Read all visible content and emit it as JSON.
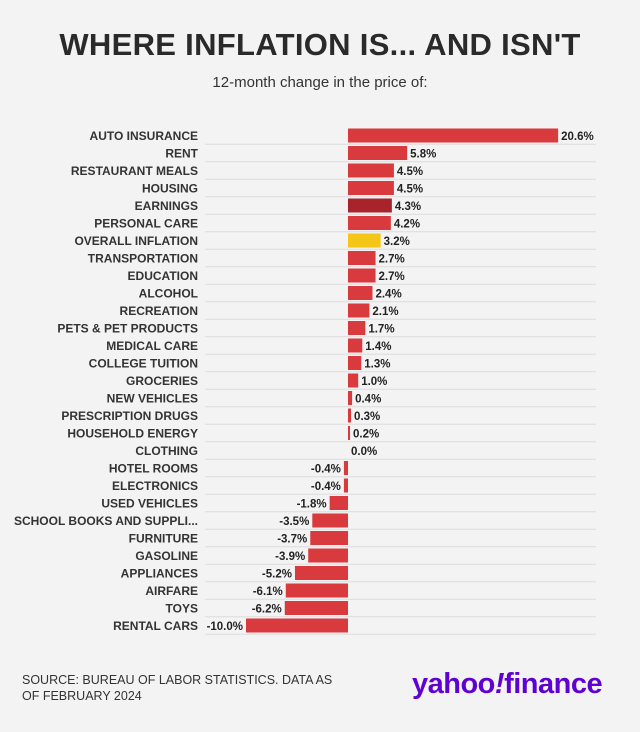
{
  "header": {
    "title": "WHERE INFLATION IS... AND ISN'T",
    "subtitle": "12-month change in the price of:"
  },
  "footer": {
    "source": "SOURCE: BUREAU OF LABOR STATISTICS. DATA AS OF FEBRUARY 2024",
    "logo": {
      "word": "yahoo",
      "bang": "!",
      "suffix": "finance"
    }
  },
  "colors": {
    "bar": "#d83a3e",
    "highlight_earnings": "#a8232b",
    "highlight_overall": "#f5c518",
    "logo": "#5f01d1"
  },
  "chart_data": {
    "type": "bar",
    "orientation": "horizontal",
    "title": "WHERE INFLATION IS... AND ISN'T",
    "subtitle": "12-month change in the price of:",
    "categories": [
      "AUTO INSURANCE",
      "RENT",
      "RESTAURANT MEALS",
      "HOUSING",
      "EARNINGS",
      "PERSONAL CARE",
      "OVERALL INFLATION",
      "TRANSPORTATION",
      "EDUCATION",
      "ALCOHOL",
      "RECREATION",
      "PETS & PET PRODUCTS",
      "MEDICAL CARE",
      "COLLEGE TUITION",
      "GROCERIES",
      "NEW VEHICLES",
      "PRESCRIPTION DRUGS",
      "HOUSEHOLD ENERGY",
      "CLOTHING",
      "HOTEL ROOMS",
      "ELECTRONICS",
      "USED VEHICLES",
      "SCHOOL BOOKS AND SUPPLI...",
      "FURNITURE",
      "GASOLINE",
      "APPLIANCES",
      "AIRFARE",
      "TOYS",
      "RENTAL CARS"
    ],
    "values": [
      20.6,
      5.8,
      4.5,
      4.5,
      4.3,
      4.2,
      3.2,
      2.7,
      2.7,
      2.4,
      2.1,
      1.7,
      1.4,
      1.3,
      1.0,
      0.4,
      0.3,
      0.2,
      0.0,
      -0.4,
      -0.4,
      -1.8,
      -3.5,
      -3.7,
      -3.9,
      -5.2,
      -6.1,
      -6.2,
      -10.0
    ],
    "value_labels": [
      "20.6%",
      "5.8%",
      "4.5%",
      "4.5%",
      "4.3%",
      "4.2%",
      "3.2%",
      "2.7%",
      "2.7%",
      "2.4%",
      "2.1%",
      "1.7%",
      "1.4%",
      "1.3%",
      "1.0%",
      "0.4%",
      "0.3%",
      "0.2%",
      "0.0%",
      "-0.4%",
      "-0.4%",
      "-1.8%",
      "-3.5%",
      "-3.7%",
      "-3.9%",
      "-5.2%",
      "-6.1%",
      "-6.2%",
      "-10.0%"
    ],
    "highlights": {
      "EARNINGS": "highlight_earnings",
      "OVERALL INFLATION": "highlight_overall"
    },
    "xlim": [
      -10,
      20.6
    ],
    "grid": "horizontal",
    "legend": "none"
  }
}
